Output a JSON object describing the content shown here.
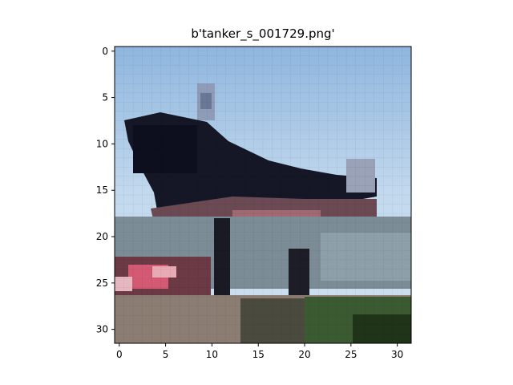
{
  "figure": {
    "title": "b'tanker_s_001729.png'",
    "image_description": "pixelated low-resolution photo of a dark tanker ship bow against a light blue sky with water and shoreline below",
    "grid_size": 32,
    "x_ticks": [
      "0",
      "5",
      "10",
      "15",
      "20",
      "25",
      "30"
    ],
    "y_ticks": [
      "0",
      "5",
      "10",
      "15",
      "20",
      "25",
      "30"
    ]
  },
  "colors": {
    "sky_top": "#8fb6de",
    "sky_light": "#c9def0",
    "ship_dark": "#151726",
    "ship_hull": "#6b4a54",
    "deck_pink": "#c56a78",
    "water": "#7c8c96",
    "shore": "#3b5a32",
    "ground": "#8c7d73"
  }
}
